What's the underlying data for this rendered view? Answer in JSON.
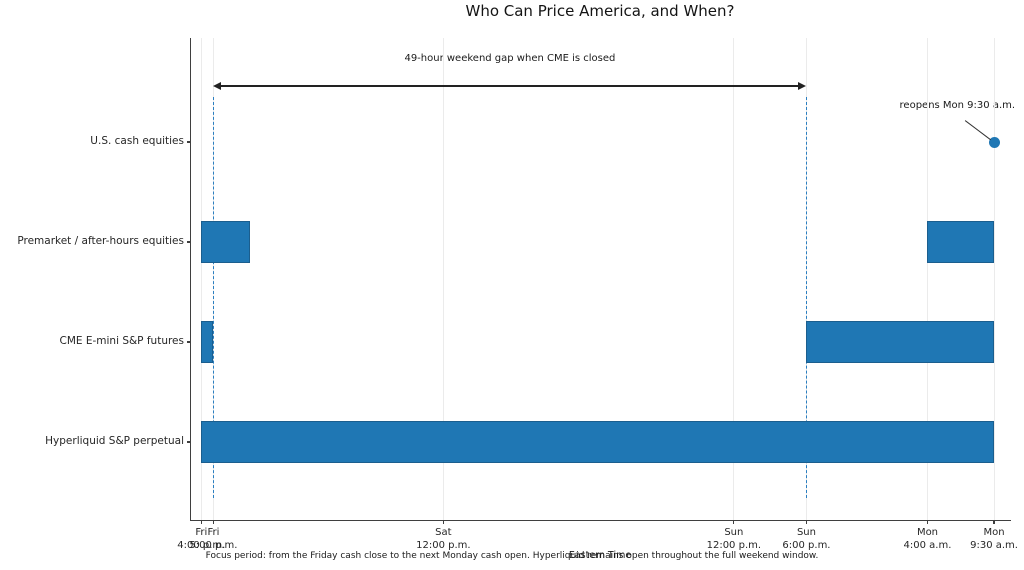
{
  "title": "Who Can Price America, and When?",
  "colors": {
    "bar_fill": "#1f77b4",
    "bar_edge": "#1b5e8e",
    "marker": "#1f77b4",
    "dashed_guide": "#2b7fc1",
    "grid": "#ebebeb",
    "axis": "#3f3f3f",
    "text": "#1a1a1a",
    "annotation_line": "#333333"
  },
  "chart_data": {
    "type": "bar",
    "subtype": "horizontal-interval-timeline (gantt / broken_barh)",
    "title": "Who Can Price America, and When?",
    "xlabel": "Eastern Time",
    "caption": "Focus period: from the Friday cash close to the next Monday cash open. Hyperliquid remains open throughout the full weekend window.",
    "x_unit": "hours after Friday 4:00 p.m. ET",
    "xlim": [
      -0.85,
      66.9
    ],
    "grid": "vertical gridlines at each x tick, no horizontal gridlines",
    "legend": "none",
    "x_ticks": [
      {
        "hours": 0,
        "line1": "Fri",
        "line2": "4:00 p.m."
      },
      {
        "hours": 1,
        "line1": "Fri",
        "line2": "5:00 p.m."
      },
      {
        "hours": 20,
        "line1": "Sat",
        "line2": "12:00 p.m."
      },
      {
        "hours": 44,
        "line1": "Sun",
        "line2": "12:00 p.m."
      },
      {
        "hours": 50,
        "line1": "Sun",
        "line2": "6:00 p.m."
      },
      {
        "hours": 60,
        "line1": "Mon",
        "line2": "4:00 a.m."
      },
      {
        "hours": 65.5,
        "line1": "Mon",
        "line2": "9:30 a.m."
      }
    ],
    "rows": [
      {
        "label": "U.S. cash equities",
        "intervals": [],
        "marker_hours": 65.5
      },
      {
        "label": "Premarket / after-hours equities",
        "intervals": [
          [
            0,
            4
          ],
          [
            60,
            65.5
          ]
        ],
        "marker_hours": null
      },
      {
        "label": "CME E-mini S&P futures",
        "intervals": [
          [
            0,
            1
          ],
          [
            50,
            65.5
          ]
        ],
        "marker_hours": null
      },
      {
        "label": "Hyperliquid S&P perpetual",
        "intervals": [
          [
            0,
            65.5
          ]
        ],
        "marker_hours": null
      }
    ],
    "dashed_guide_hours": [
      1,
      50
    ],
    "annotations": {
      "gap": {
        "text": "49-hour weekend gap when CME is closed",
        "from_hours": 1,
        "to_hours": 50,
        "arrow": "double-headed horizontal"
      },
      "reopen": {
        "text": "reopens Mon 9:30 a.m.",
        "at_hours": 65.5,
        "row": "U.S. cash equities",
        "marker": "filled dot with leader line"
      }
    }
  }
}
